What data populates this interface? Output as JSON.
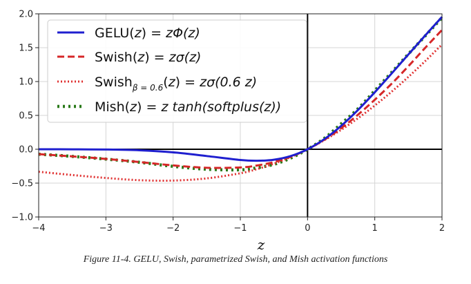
{
  "chart_data": {
    "type": "line",
    "xlabel": "z",
    "ylabel": "",
    "xlim": [
      -4,
      2
    ],
    "ylim": [
      -1.0,
      2.0
    ],
    "xticks": [
      -4,
      -3,
      -2,
      -1,
      0,
      1,
      2
    ],
    "xtick_labels": [
      "−4",
      "−3",
      "−2",
      "−1",
      "0",
      "1",
      "2"
    ],
    "yticks": [
      -1.0,
      -0.5,
      0.0,
      0.5,
      1.0,
      1.5,
      2.0
    ],
    "ytick_labels": [
      "−1.0",
      "−0.5",
      "0.0",
      "0.5",
      "1.0",
      "1.5",
      "2.0"
    ],
    "grid": true,
    "legend_position": "top-left",
    "x": [
      -4,
      -3.5,
      -3,
      -2.5,
      -2,
      -1.5,
      -1,
      -0.75,
      -0.5,
      -0.25,
      0,
      0.25,
      0.5,
      0.75,
      1,
      1.25,
      1.5,
      1.75,
      2
    ],
    "series": [
      {
        "name": "GELU",
        "legend_label": "GELU(z) = zΦ(z)",
        "color": "#1f1fcf",
        "style": "solid",
        "values": [
          -0.0001,
          -0.0008,
          -0.004,
          -0.0155,
          -0.0455,
          -0.1002,
          -0.1587,
          -0.17,
          -0.1543,
          -0.1003,
          0,
          0.1497,
          0.3457,
          0.58,
          0.8413,
          1.118,
          1.3998,
          1.6804,
          1.9545
        ]
      },
      {
        "name": "Swish",
        "legend_label": "Swish(z) = zσ(z)",
        "color": "#d62728",
        "style": "dashed",
        "values": [
          -0.0719,
          -0.1052,
          -0.1423,
          -0.1891,
          -0.2384,
          -0.2736,
          -0.2689,
          -0.2398,
          -0.1888,
          -0.11,
          0,
          0.14,
          0.3112,
          0.5102,
          0.7311,
          0.9674,
          1.2264,
          1.4979,
          1.7616
        ]
      },
      {
        "name": "Swish β=0.6",
        "legend_label": "Swishβ = 0.6(z) = zσ(0.6 z)",
        "color": "#e03030",
        "style": "dotted",
        "values": [
          -0.3322,
          -0.3805,
          -0.4237,
          -0.4567,
          -0.4624,
          -0.4302,
          -0.3542,
          -0.2923,
          -0.2128,
          -0.1157,
          0,
          0.1343,
          0.2872,
          0.4577,
          0.6458,
          0.8496,
          1.0688,
          1.3019,
          1.5476
        ]
      },
      {
        "name": "Mish",
        "legend_label": "Mish(z) = z tanh(softplus(z))",
        "color": "#2a7a1a",
        "style": "dotted-bold",
        "values": [
          -0.0727,
          -0.1054,
          -0.1456,
          -0.1925,
          -0.2525,
          -0.2951,
          -0.3034,
          -0.2733,
          -0.2224,
          -0.1299,
          0,
          0.1611,
          0.3752,
          0.5978,
          0.8651,
          1.1339,
          1.4064,
          1.6737,
          1.944
        ]
      }
    ]
  },
  "legend": {
    "gelu": {
      "fn": "GELU(",
      "var": "z",
      "mid": ") = ",
      "body": "zΦ(z)"
    },
    "swish": {
      "fn": "Swish(",
      "var": "z",
      "mid": ") = ",
      "body": "zσ(z)"
    },
    "swish06": {
      "fn": "Swish",
      "sub": "β = 0.6",
      "open": "(",
      "var": "z",
      "mid": ") = ",
      "body": "zσ(0.6 z)"
    },
    "mish": {
      "fn": "Mish(",
      "var": "z",
      "mid": ") = ",
      "body": "z tanh(softplus(z))"
    }
  },
  "caption": "Figure 11-4. GELU, Swish, parametrized Swish, and Mish activation functions"
}
